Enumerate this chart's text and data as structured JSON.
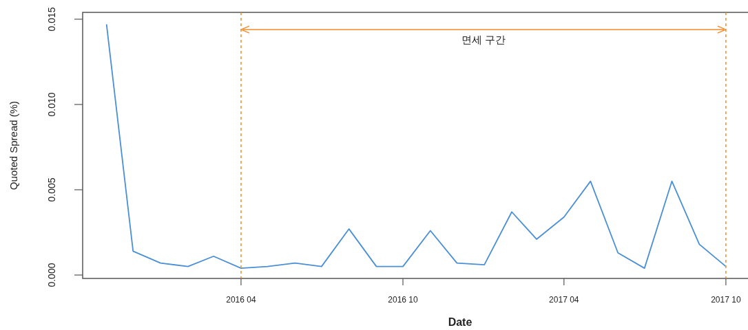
{
  "chart_data": {
    "type": "line",
    "xlabel": "Date",
    "ylabel": "Quoted Spread (%)",
    "x": [
      "2015-11",
      "2015-12",
      "2016-01",
      "2016-02",
      "2016-03",
      "2016-04",
      "2016-05",
      "2016-06",
      "2016-07",
      "2016-08",
      "2016-09",
      "2016-10",
      "2016-11",
      "2016-12",
      "2017-01",
      "2017-02",
      "2017-03",
      "2017-04",
      "2017-05",
      "2017-06",
      "2017-07",
      "2017-08",
      "2017-09",
      "2017-10"
    ],
    "series": [
      {
        "color": "#4a8fd6",
        "values": [
          0.0147,
          0.0014,
          0.0007,
          0.0005,
          0.0011,
          0.0004,
          0.0005,
          0.0007,
          0.0005,
          0.0027,
          0.0005,
          0.0005,
          0.0026,
          0.0007,
          0.0006,
          0.0037,
          0.0021,
          0.0034,
          0.0055,
          0.0013,
          0.0004,
          0.0055,
          0.0018,
          0.0005
        ]
      }
    ],
    "xlim": [
      "2015-10-05",
      "2017-10-26"
    ],
    "ylim": [
      -0.0002,
      0.0154
    ],
    "xticks": [
      {
        "value": "2016-04",
        "label": "2016 04"
      },
      {
        "value": "2016-10",
        "label": "2016 10"
      },
      {
        "value": "2017-04",
        "label": "2017 04"
      },
      {
        "value": "2017-10",
        "label": "2017 10"
      }
    ],
    "yticks": [
      {
        "value": 0,
        "label": "0.000"
      },
      {
        "value": 0.005,
        "label": "0.005"
      },
      {
        "value": 0.01,
        "label": "0.010"
      },
      {
        "value": 0.015,
        "label": "0.015"
      }
    ],
    "ref_lines": [
      {
        "axis": "x",
        "value": "2016-04",
        "color": "#f28c28",
        "line_style": "dashed"
      },
      {
        "axis": "x",
        "value": "2017-10",
        "color": "#f28c28",
        "line_style": "dashed"
      }
    ],
    "annotations": [
      "면세 구간"
    ]
  }
}
